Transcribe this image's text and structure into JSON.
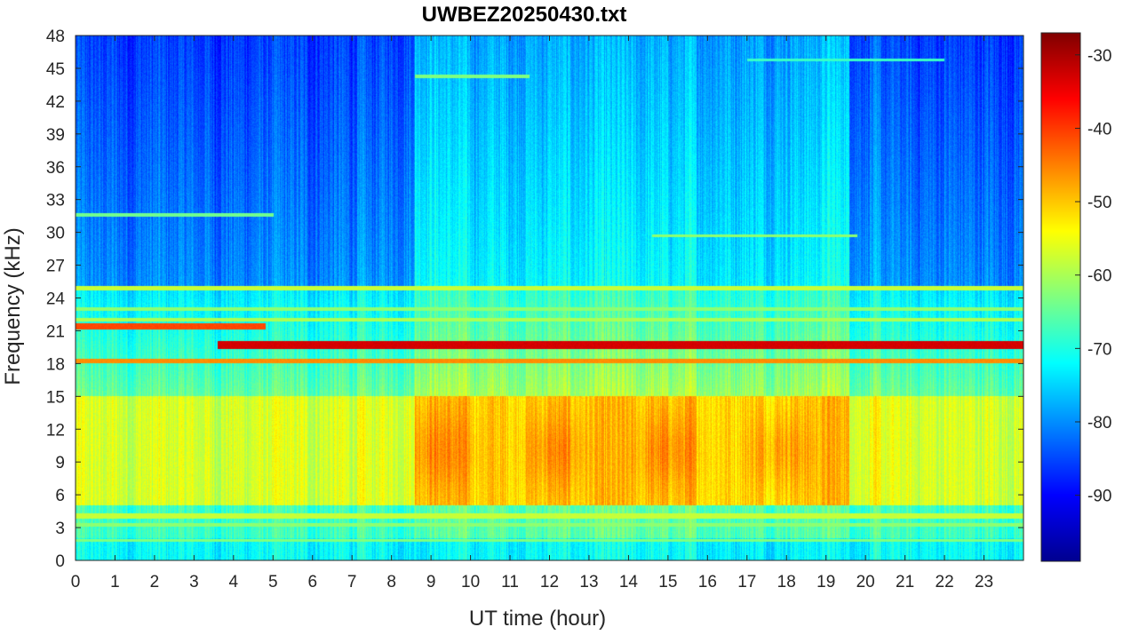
{
  "chart_data": {
    "type": "heatmap",
    "title": "UWBEZ20250430.txt",
    "xlabel": "UT time (hour)",
    "ylabel": "Frequency (kHz)",
    "x_ticks": [
      "0",
      "1",
      "2",
      "3",
      "4",
      "5",
      "6",
      "7",
      "8",
      "9",
      "10",
      "11",
      "12",
      "13",
      "14",
      "15",
      "16",
      "17",
      "18",
      "19",
      "20",
      "21",
      "22",
      "23"
    ],
    "y_ticks": [
      "0",
      "3",
      "6",
      "9",
      "12",
      "15",
      "18",
      "21",
      "24",
      "27",
      "30",
      "33",
      "36",
      "39",
      "42",
      "45",
      "48"
    ],
    "xlim": [
      0,
      24
    ],
    "ylim": [
      0,
      48
    ],
    "colorbar": {
      "ticks": [
        "-30",
        "-40",
        "-50",
        "-60",
        "-70",
        "-80",
        "-90"
      ],
      "range": [
        -99,
        -27
      ],
      "colormap": "jet"
    },
    "approximate_features": [
      {
        "name": "line",
        "freq_khz": 19.7,
        "start_hour": 3.6,
        "end_hour": 24.0,
        "level_db": -33
      },
      {
        "name": "line",
        "freq_khz": 21.4,
        "start_hour": 0.0,
        "end_hour": 4.8,
        "level_db": -40
      },
      {
        "name": "line",
        "freq_khz": 18.2,
        "start_hour": 0.0,
        "end_hour": 24.0,
        "level_db": -44
      },
      {
        "name": "line",
        "freq_khz": 24.9,
        "start_hour": 0.0,
        "end_hour": 24.0,
        "level_db": -58
      },
      {
        "name": "line",
        "freq_khz": 4.0,
        "start_hour": 0.0,
        "end_hour": 24.0,
        "level_db": -58
      },
      {
        "name": "band",
        "freq_range_khz": [
          5,
          15
        ],
        "hours": [
          8.6,
          19.6
        ],
        "level_db": -48
      },
      {
        "name": "band",
        "freq_range_khz": [
          5,
          15
        ],
        "hours": [
          0,
          8.6
        ],
        "level_db": -55
      }
    ]
  }
}
